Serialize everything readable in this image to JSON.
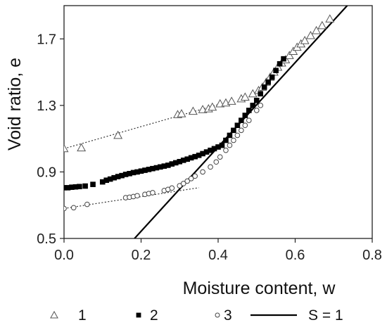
{
  "chart_data": {
    "type": "scatter",
    "xlabel": "Moisture content, w",
    "ylabel": "Void ratio, e",
    "xlim": [
      0,
      0.8
    ],
    "ylim": [
      0.5,
      1.9
    ],
    "xticks": [
      0.0,
      0.2,
      0.4,
      0.6,
      0.8
    ],
    "xtick_labels": [
      "0.0",
      "0.2",
      "0.4",
      "0.6",
      "0.8"
    ],
    "yticks": [
      0.5,
      0.9,
      1.3,
      1.7
    ],
    "ytick_labels": [
      "0.5",
      "0.9",
      "1.3",
      "1.7"
    ],
    "grid": false,
    "legend_position": "bottom",
    "series": [
      {
        "name": "1",
        "marker": "open-triangle",
        "color": "#555555",
        "x": [
          0.0,
          0.045,
          0.14,
          0.295,
          0.305,
          0.335,
          0.36,
          0.375,
          0.385,
          0.405,
          0.42,
          0.435,
          0.46,
          0.47,
          0.49,
          0.505,
          0.515,
          0.525,
          0.535,
          0.545,
          0.555,
          0.565,
          0.575,
          0.585,
          0.595,
          0.605,
          0.615,
          0.625,
          0.64,
          0.655,
          0.67,
          0.69
        ],
        "y": [
          1.04,
          1.045,
          1.12,
          1.245,
          1.25,
          1.265,
          1.275,
          1.28,
          1.29,
          1.31,
          1.315,
          1.325,
          1.34,
          1.35,
          1.37,
          1.39,
          1.41,
          1.44,
          1.47,
          1.5,
          1.53,
          1.555,
          1.575,
          1.6,
          1.625,
          1.65,
          1.67,
          1.69,
          1.72,
          1.75,
          1.78,
          1.82
        ]
      },
      {
        "name": "2",
        "marker": "filled-square",
        "color": "#000000",
        "x": [
          0.0,
          0.01,
          0.02,
          0.03,
          0.04,
          0.055,
          0.075,
          0.1,
          0.11,
          0.12,
          0.13,
          0.14,
          0.15,
          0.16,
          0.17,
          0.18,
          0.19,
          0.2,
          0.21,
          0.22,
          0.23,
          0.24,
          0.25,
          0.26,
          0.27,
          0.28,
          0.29,
          0.3,
          0.31,
          0.32,
          0.33,
          0.34,
          0.35,
          0.36,
          0.37,
          0.38,
          0.39,
          0.4,
          0.41,
          0.42,
          0.43,
          0.44,
          0.45,
          0.46,
          0.47,
          0.48,
          0.49,
          0.5,
          0.51,
          0.52,
          0.53,
          0.54,
          0.55,
          0.56,
          0.57
        ],
        "y": [
          0.805,
          0.805,
          0.808,
          0.81,
          0.812,
          0.815,
          0.825,
          0.84,
          0.85,
          0.857,
          0.865,
          0.872,
          0.878,
          0.885,
          0.89,
          0.896,
          0.9,
          0.905,
          0.91,
          0.915,
          0.92,
          0.925,
          0.93,
          0.935,
          0.94,
          0.948,
          0.955,
          0.962,
          0.97,
          0.977,
          0.985,
          0.992,
          1.0,
          1.01,
          1.02,
          1.03,
          1.04,
          1.05,
          1.06,
          1.09,
          1.12,
          1.15,
          1.18,
          1.21,
          1.24,
          1.27,
          1.3,
          1.33,
          1.37,
          1.41,
          1.44,
          1.47,
          1.51,
          1.55,
          1.58
        ]
      },
      {
        "name": "3",
        "marker": "open-circle",
        "color": "#444444",
        "x": [
          0.0,
          0.025,
          0.06,
          0.16,
          0.17,
          0.18,
          0.19,
          0.21,
          0.22,
          0.23,
          0.26,
          0.27,
          0.28,
          0.3,
          0.31,
          0.32,
          0.33,
          0.34,
          0.36,
          0.38,
          0.395,
          0.405,
          0.42,
          0.43,
          0.44,
          0.45,
          0.46,
          0.47,
          0.48,
          0.5,
          0.51
        ],
        "y": [
          0.68,
          0.685,
          0.705,
          0.745,
          0.748,
          0.752,
          0.757,
          0.765,
          0.77,
          0.775,
          0.788,
          0.795,
          0.803,
          0.817,
          0.83,
          0.845,
          0.86,
          0.875,
          0.9,
          0.93,
          0.96,
          0.99,
          1.03,
          1.06,
          1.09,
          1.12,
          1.15,
          1.18,
          1.21,
          1.27,
          1.3
        ]
      },
      {
        "name": "S = 1",
        "marker": "line",
        "color": "#000000",
        "x": [
          0.183,
          0.735
        ],
        "y": [
          0.5,
          1.9
        ]
      }
    ],
    "trendlines": [
      {
        "series": "1",
        "style": "dotted",
        "x": [
          0.0,
          0.4
        ],
        "y": [
          1.04,
          1.305
        ]
      },
      {
        "series": "3",
        "style": "dotted",
        "x": [
          0.0,
          0.35
        ],
        "y": [
          0.68,
          0.805
        ]
      }
    ]
  }
}
